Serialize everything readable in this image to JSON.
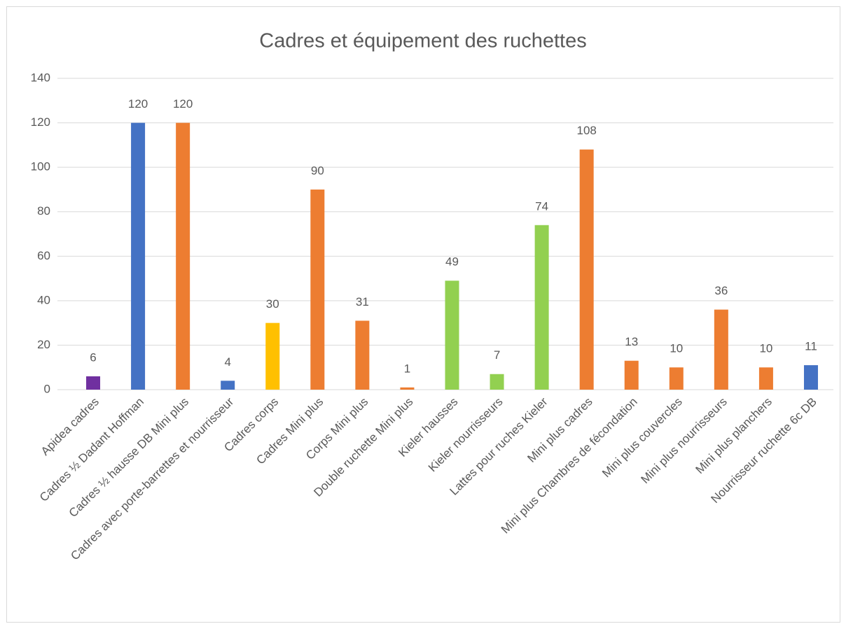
{
  "chart_data": {
    "type": "bar",
    "title": "Cadres et équipement des ruchettes",
    "categories": [
      "Apidea cadres",
      "Cadres ½ Dadant Hoffman",
      "Cadres ½ hausse DB Mini plus",
      "Cadres avec porte-barrettes et nourrisseur",
      "Cadres corps",
      "Cadres Mini plus",
      "Corps Mini plus",
      "Double ruchette Mini plus",
      "Kieler hausses",
      "Kieler nourrisseurs",
      "Lattes pour ruches Kieler",
      "Mini plus cadres",
      "Mini plus Chambres de fécondation",
      "Mini plus couvercles",
      "Mini plus nourrisseurs",
      "Mini plus planchers",
      "Nourrisseur ruchette 6c DB"
    ],
    "values": [
      6,
      120,
      120,
      4,
      30,
      90,
      31,
      1,
      49,
      7,
      74,
      108,
      13,
      10,
      36,
      10,
      11
    ],
    "colors": [
      "#7030a0",
      "#4472c4",
      "#ed7d31",
      "#4472c4",
      "#ffc000",
      "#ed7d31",
      "#ed7d31",
      "#ed7d31",
      "#92d050",
      "#92d050",
      "#92d050",
      "#ed7d31",
      "#ed7d31",
      "#ed7d31",
      "#ed7d31",
      "#ed7d31",
      "#4472c4"
    ],
    "ylim": [
      0,
      140
    ],
    "yticks": [
      0,
      20,
      40,
      60,
      80,
      100,
      120,
      140
    ],
    "grid": true
  }
}
